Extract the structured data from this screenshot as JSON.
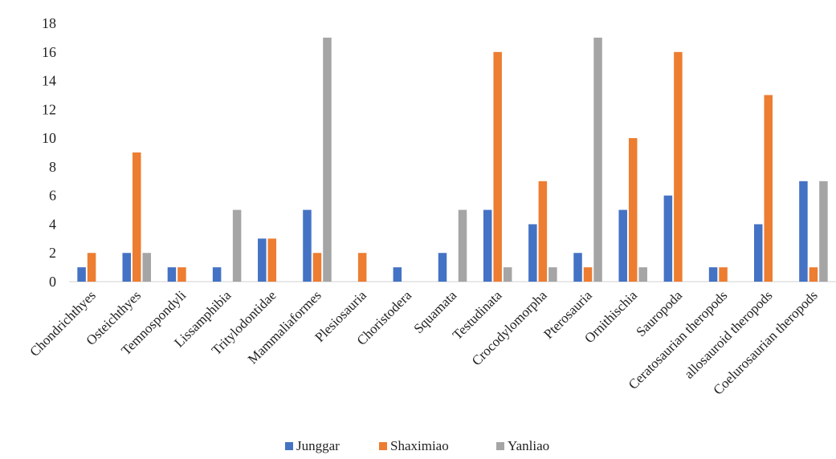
{
  "chart_data": {
    "type": "bar",
    "categories": [
      "Chondrichthyes",
      "Osteichthyes",
      "Temnospondyli",
      "Lissamphibia",
      "Tritylodontidae",
      "Mammaliaformes",
      "Plesiosauria",
      "Choristodera",
      "Squamata",
      "Testudinata",
      "Crocodylomorpha",
      "Pterosauria",
      "Ornithischia",
      "Sauropoda",
      "Ceratosaurian theropods",
      "allosauroid theropods",
      "Coelurosaurian theropods"
    ],
    "series": [
      {
        "name": "Junggar",
        "color": "#4472C4",
        "values": [
          1,
          2,
          1,
          1,
          3,
          5,
          0,
          1,
          2,
          5,
          4,
          2,
          5,
          6,
          1,
          4,
          7
        ]
      },
      {
        "name": "Shaximiao",
        "color": "#ED7D31",
        "values": [
          2,
          9,
          1,
          0,
          3,
          2,
          2,
          0,
          0,
          16,
          7,
          1,
          10,
          16,
          1,
          13,
          1
        ]
      },
      {
        "name": "Yanliao",
        "color": "#A5A5A5",
        "values": [
          0,
          2,
          0,
          5,
          0,
          17,
          0,
          0,
          5,
          1,
          1,
          17,
          1,
          0,
          0,
          0,
          7
        ]
      }
    ],
    "ylim": [
      0,
      18
    ],
    "yticks": [
      0,
      2,
      4,
      6,
      8,
      10,
      12,
      14,
      16,
      18
    ],
    "grid": false,
    "legend_position": "bottom-center"
  }
}
